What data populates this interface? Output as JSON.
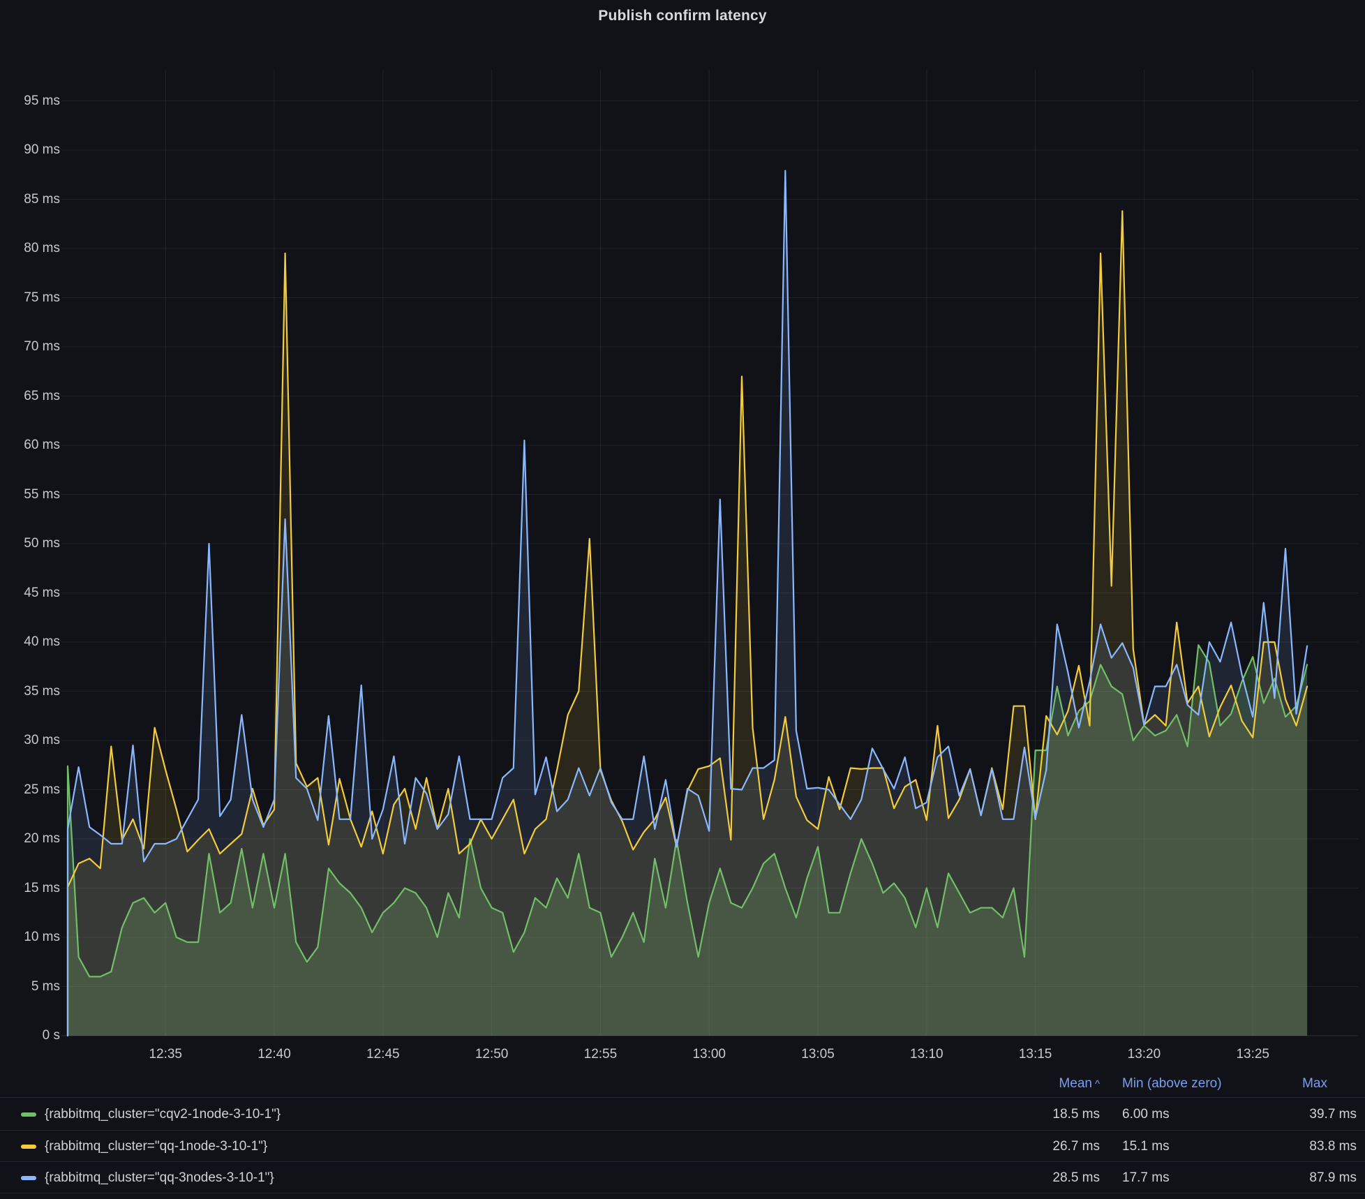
{
  "panel": {
    "title": "Publish confirm latency"
  },
  "y_axis": {
    "ticks": [
      {
        "value": 0,
        "label": "0 s"
      },
      {
        "value": 5,
        "label": "5 ms"
      },
      {
        "value": 10,
        "label": "10 ms"
      },
      {
        "value": 15,
        "label": "15 ms"
      },
      {
        "value": 20,
        "label": "20 ms"
      },
      {
        "value": 25,
        "label": "25 ms"
      },
      {
        "value": 30,
        "label": "30 ms"
      },
      {
        "value": 35,
        "label": "35 ms"
      },
      {
        "value": 40,
        "label": "40 ms"
      },
      {
        "value": 45,
        "label": "45 ms"
      },
      {
        "value": 50,
        "label": "50 ms"
      },
      {
        "value": 55,
        "label": "55 ms"
      },
      {
        "value": 60,
        "label": "60 ms"
      },
      {
        "value": 65,
        "label": "65 ms"
      },
      {
        "value": 70,
        "label": "70 ms"
      },
      {
        "value": 75,
        "label": "75 ms"
      },
      {
        "value": 80,
        "label": "80 ms"
      },
      {
        "value": 85,
        "label": "85 ms"
      },
      {
        "value": 90,
        "label": "90 ms"
      },
      {
        "value": 95,
        "label": "95 ms"
      }
    ]
  },
  "x_axis": {
    "ticks": [
      {
        "index": 9,
        "label": "12:35"
      },
      {
        "index": 19,
        "label": "12:40"
      },
      {
        "index": 29,
        "label": "12:45"
      },
      {
        "index": 39,
        "label": "12:50"
      },
      {
        "index": 49,
        "label": "12:55"
      },
      {
        "index": 59,
        "label": "13:00"
      },
      {
        "index": 69,
        "label": "13:05"
      },
      {
        "index": 79,
        "label": "13:10"
      },
      {
        "index": 89,
        "label": "13:15"
      },
      {
        "index": 99,
        "label": "13:20"
      },
      {
        "index": 109,
        "label": "13:25"
      }
    ]
  },
  "chart_data": {
    "type": "line",
    "title": "Publish confirm latency",
    "unit": "ms",
    "ylim": [
      0,
      95
    ],
    "grid": true,
    "legend_position": "bottom",
    "x_start": "12:30:30",
    "x_step_seconds": 30,
    "x_end": "13:27:30",
    "series": [
      {
        "name": "{rabbitmq_cluster=\"cqv2-1node-3-10-1\"}",
        "color": "#73bf69",
        "fill": "rgba(115,191,105,0.22)",
        "values": [
          27.4,
          8,
          6,
          6,
          6.5,
          11,
          13.5,
          14,
          12.5,
          13.5,
          10,
          9.5,
          9.5,
          18.5,
          12.5,
          13.5,
          19,
          13,
          18.5,
          13,
          18.5,
          9.5,
          7.5,
          9,
          17,
          15.5,
          14.5,
          13,
          10.5,
          12.5,
          13.5,
          15,
          14.5,
          13,
          10,
          14.5,
          12,
          20,
          15,
          13,
          12.5,
          8.5,
          10.5,
          14,
          13,
          16,
          14,
          18.5,
          13,
          12.5,
          8,
          10,
          12.5,
          9.5,
          18,
          13,
          19.9,
          13.5,
          8,
          13.5,
          17,
          13.5,
          13,
          15,
          17.5,
          18.5,
          15,
          12,
          16,
          19.2,
          12.5,
          12.5,
          16.5,
          20,
          17.5,
          14.5,
          15.5,
          14,
          11,
          15,
          11,
          16.5,
          14.5,
          12.5,
          13,
          13,
          12,
          15,
          8,
          29,
          29,
          35.5,
          30.5,
          33,
          34,
          37.7,
          35.5,
          34.7,
          30,
          31.5,
          30.5,
          31,
          32.6,
          29.4,
          39.7,
          37.9,
          31.5,
          32.7,
          36,
          38.5,
          33.8,
          36.3,
          32.4,
          33.5,
          37.7
        ]
      },
      {
        "name": "{rabbitmq_cluster=\"qq-1node-3-10-1\"}",
        "color": "#f2cc3d",
        "fill": "rgba(242,204,61,0.12)",
        "values": [
          15.1,
          17.5,
          18,
          17,
          29.4,
          19.9,
          22,
          19,
          31.3,
          27,
          23,
          18.7,
          19.9,
          21,
          18.5,
          19.5,
          20.5,
          25.1,
          21.4,
          23,
          79.5,
          27.7,
          25.3,
          26.2,
          19.4,
          26.1,
          22,
          19.2,
          22.8,
          18.5,
          23.5,
          25.1,
          21,
          26.2,
          21,
          25.1,
          18.5,
          19.5,
          22,
          20,
          22,
          24,
          18.5,
          21,
          22,
          27,
          32.6,
          35,
          50.5,
          27,
          23.9,
          21.8,
          18.9,
          20.7,
          22,
          24.2,
          19.2,
          24.9,
          27.1,
          27.4,
          28.2,
          19.9,
          67,
          31.3,
          22,
          26,
          32.4,
          24.3,
          21.9,
          21,
          26.3,
          23,
          27.2,
          27.1,
          27.2,
          27.2,
          23.1,
          25.3,
          26,
          21.9,
          31.5,
          22.1,
          24,
          27.1,
          22.4,
          27.2,
          23,
          33.5,
          33.5,
          22,
          32.5,
          30.6,
          33,
          37.6,
          31.5,
          79.5,
          45.7,
          83.8,
          39.3,
          31.6,
          32.6,
          31.5,
          42,
          33.8,
          35.5,
          30.4,
          33.4,
          35.6,
          32,
          30.3,
          40,
          40,
          34.2,
          31.5,
          35.5
        ]
      },
      {
        "name": "{rabbitmq_cluster=\"qq-3nodes-3-10-1\"}",
        "color": "#8ab8ff",
        "fill": "rgba(138,184,255,0.12)",
        "values": [
          21,
          27.3,
          21.2,
          20.4,
          19.5,
          19.5,
          29.5,
          17.7,
          19.5,
          19.5,
          20,
          22,
          24,
          50,
          22.3,
          24,
          32.6,
          24,
          21.2,
          24,
          52.5,
          26.2,
          25.1,
          21.9,
          32.5,
          22,
          22,
          35.6,
          20,
          23,
          28.4,
          19.5,
          26.2,
          24.6,
          21,
          22.5,
          28.4,
          22,
          22,
          22,
          26.2,
          27.2,
          60.5,
          24.5,
          28.3,
          22.8,
          24,
          27.2,
          24.4,
          27.2,
          23.7,
          22,
          22,
          28.4,
          21,
          26,
          19.2,
          25.1,
          24.4,
          20.8,
          54.5,
          25.1,
          25,
          27.2,
          27.2,
          28,
          87.9,
          31,
          25.1,
          25.2,
          25,
          23.5,
          22,
          24,
          29.2,
          27.1,
          25.1,
          28.3,
          23.1,
          23.7,
          28.3,
          29.4,
          24.4,
          27.1,
          22.4,
          27.1,
          22,
          22,
          29.3,
          22.1,
          27,
          41.8,
          36.9,
          31.3,
          36,
          41.8,
          38.4,
          39.9,
          37.4,
          31.6,
          35.5,
          35.5,
          37.7,
          33.6,
          32.6,
          40,
          38,
          42,
          36.7,
          32.4,
          44,
          34.3,
          49.5,
          32.7,
          39.6
        ]
      }
    ]
  },
  "legend": {
    "headers": {
      "mean": "Mean",
      "sort_indicator": "^",
      "min": "Min (above zero)",
      "max": "Max"
    },
    "rows": [
      {
        "label": "{rabbitmq_cluster=\"cqv2-1node-3-10-1\"}",
        "color": "#73bf69",
        "mean": "18.5 ms",
        "min": "6.00 ms",
        "max": "39.7 ms"
      },
      {
        "label": "{rabbitmq_cluster=\"qq-1node-3-10-1\"}",
        "color": "#f2cc3d",
        "mean": "26.7 ms",
        "min": "15.1 ms",
        "max": "83.8 ms"
      },
      {
        "label": "{rabbitmq_cluster=\"qq-3nodes-3-10-1\"}",
        "color": "#8ab8ff",
        "mean": "28.5 ms",
        "min": "17.7 ms",
        "max": "87.9 ms"
      }
    ]
  }
}
